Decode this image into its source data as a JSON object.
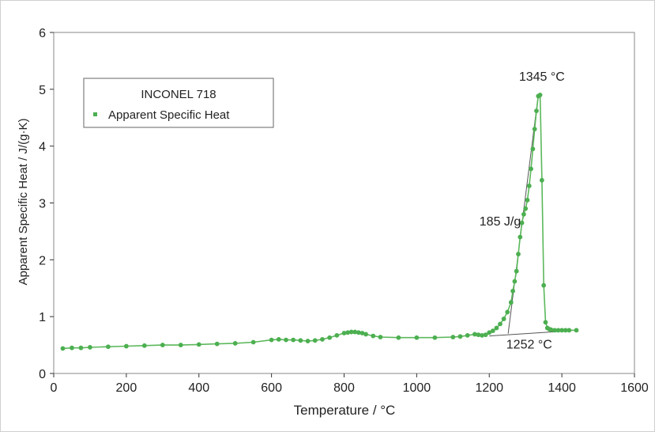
{
  "chart_data": {
    "type": "scatter",
    "title": "",
    "xlabel": "Temperature / °C",
    "ylabel": "Apparent Specific Heat / J/(g·K)",
    "xlim": [
      0,
      1600
    ],
    "ylim": [
      0,
      6
    ],
    "xticks": [
      0,
      200,
      400,
      600,
      800,
      1000,
      1200,
      1400,
      1600
    ],
    "xtick_labels": [
      "0",
      "200",
      "400",
      "600",
      "800",
      "1000",
      "1200",
      "1400",
      "1600"
    ],
    "yticks": [
      0,
      1,
      2,
      3,
      4,
      5,
      6
    ],
    "ytick_labels": [
      "0",
      "1",
      "2",
      "3",
      "4",
      "5",
      "6"
    ],
    "grid": false,
    "legend": {
      "placement": "top-left",
      "title": "INCONEL 718",
      "entries": [
        "Apparent Specific Heat"
      ]
    },
    "colors": {
      "series": "#4caf50",
      "line": "#5cb85c",
      "tangent": "#555555",
      "axis": "#333333",
      "frame": "#bbbbbb"
    },
    "series": [
      {
        "name": "Apparent Specific Heat",
        "x": [
          25,
          50,
          75,
          100,
          150,
          200,
          250,
          300,
          350,
          400,
          450,
          500,
          550,
          600,
          620,
          640,
          660,
          680,
          700,
          720,
          740,
          760,
          780,
          800,
          810,
          820,
          830,
          840,
          850,
          860,
          880,
          900,
          950,
          1000,
          1050,
          1100,
          1120,
          1140,
          1160,
          1170,
          1180,
          1190,
          1200,
          1210,
          1220,
          1230,
          1240,
          1250,
          1260,
          1265,
          1270,
          1275,
          1280,
          1285,
          1290,
          1295,
          1300,
          1305,
          1310,
          1315,
          1320,
          1325,
          1330,
          1335,
          1340,
          1345,
          1350,
          1355,
          1360,
          1365,
          1370,
          1380,
          1390,
          1400,
          1410,
          1420,
          1440
        ],
        "y": [
          0.44,
          0.45,
          0.45,
          0.46,
          0.47,
          0.48,
          0.49,
          0.5,
          0.5,
          0.51,
          0.52,
          0.53,
          0.55,
          0.59,
          0.6,
          0.59,
          0.59,
          0.58,
          0.57,
          0.58,
          0.6,
          0.63,
          0.67,
          0.71,
          0.72,
          0.73,
          0.73,
          0.72,
          0.71,
          0.69,
          0.66,
          0.64,
          0.63,
          0.63,
          0.63,
          0.64,
          0.65,
          0.67,
          0.69,
          0.68,
          0.67,
          0.68,
          0.72,
          0.75,
          0.8,
          0.87,
          0.96,
          1.08,
          1.25,
          1.45,
          1.62,
          1.8,
          2.1,
          2.4,
          2.65,
          2.8,
          2.9,
          3.05,
          3.3,
          3.6,
          3.95,
          4.3,
          4.62,
          4.88,
          4.9,
          3.4,
          1.55,
          0.9,
          0.8,
          0.78,
          0.77,
          0.76,
          0.76,
          0.76,
          0.76,
          0.76,
          0.76
        ]
      }
    ],
    "annotations": [
      {
        "text": "1345 °C",
        "x": 1345,
        "y": 5.15
      },
      {
        "text": "185 J/g",
        "x": 1230,
        "y": 2.6
      },
      {
        "text": "1252 °C",
        "x": 1310,
        "y": 0.44
      }
    ],
    "tangent_lines": [
      {
        "x": [
          1200,
          1420
        ],
        "y": [
          0.66,
          0.75
        ]
      },
      {
        "x": [
          1252,
          1335
        ],
        "y": [
          0.7,
          4.9
        ]
      }
    ]
  }
}
